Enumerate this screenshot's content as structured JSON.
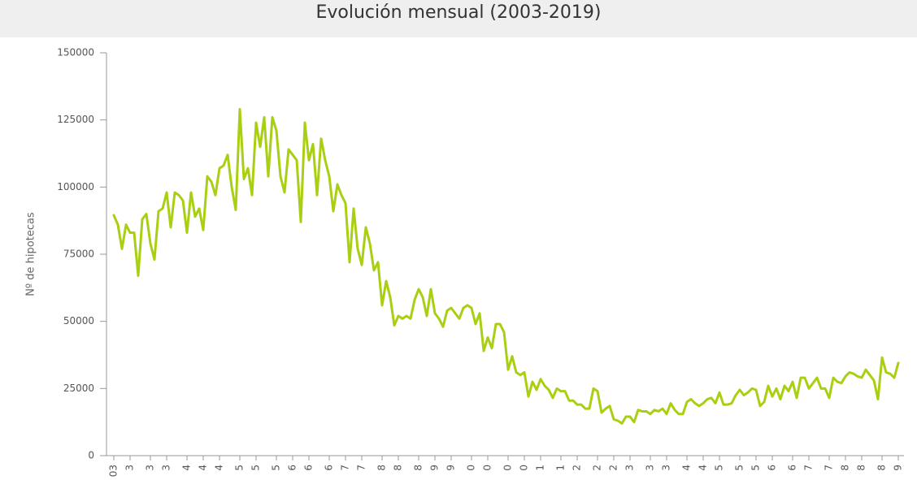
{
  "chart_data": {
    "type": "line",
    "title": "Evolución mensual (2003-2019)",
    "y_label": "Nº de hipotecas",
    "color": "#a9cf12",
    "values": [
      89500,
      86000,
      77000,
      86000,
      83000,
      83000,
      67000,
      88000,
      90000,
      79000,
      73000,
      91000,
      92000,
      98000,
      85000,
      98000,
      97000,
      95000,
      83000,
      98000,
      89000,
      92000,
      84000,
      104000,
      102000,
      97000,
      107000,
      108000,
      112000,
      100000,
      91500,
      129000,
      103000,
      107000,
      97000,
      124000,
      115000,
      126000,
      104000,
      126000,
      121000,
      104000,
      98000,
      114000,
      112000,
      110000,
      87000,
      124000,
      110000,
      116000,
      97000,
      118000,
      110000,
      104000,
      91000,
      101000,
      97000,
      94000,
      72000,
      92000,
      77000,
      71000,
      85000,
      79000,
      69000,
      72000,
      56000,
      65000,
      59000,
      48500,
      52000,
      51000,
      52000,
      51000,
      58000,
      62000,
      59000,
      52000,
      62000,
      53000,
      51000,
      48000,
      54000,
      55000,
      53000,
      51000,
      55000,
      56000,
      55000,
      49000,
      53000,
      39000,
      44000,
      40000,
      49000,
      49000,
      46000,
      32000,
      37000,
      31000,
      30000,
      31000,
      22000,
      27500,
      24500,
      28500,
      26000,
      24500,
      21500,
      25000,
      24000,
      24000,
      20500,
      20500,
      19000,
      19000,
      17500,
      17500,
      25000,
      24000,
      16000,
      17500,
      18500,
      13500,
      13000,
      12000,
      14500,
      14500,
      12500,
      17000,
      16500,
      16500,
      15500,
      17000,
      16500,
      17500,
      15500,
      19500,
      17000,
      15500,
      15500,
      20000,
      21000,
      19500,
      18500,
      19500,
      21000,
      21500,
      19500,
      23500,
      19000,
      19000,
      19500,
      22500,
      24500,
      22500,
      23500,
      25000,
      24500,
      18500,
      20000,
      26000,
      22000,
      25000,
      21000,
      26000,
      24000,
      27500,
      21500,
      29000,
      29000,
      25000,
      27000,
      29000,
      25000,
      25000,
      21500,
      29000,
      27500,
      27000,
      29500,
      31000,
      30500,
      29500,
      29000,
      32000,
      30000,
      28000,
      21000,
      36500,
      31000,
      30500,
      29000,
      34500
    ],
    "xlim": [
      0,
      194
    ],
    "xticks": [
      {
        "value": 0,
        "label": "03"
      },
      {
        "value": 4,
        "label": "3"
      },
      {
        "value": 9,
        "label": "3"
      },
      {
        "value": 13,
        "label": "3"
      },
      {
        "value": 18,
        "label": "4"
      },
      {
        "value": 22,
        "label": "4"
      },
      {
        "value": 26,
        "label": "4"
      },
      {
        "value": 31,
        "label": "5"
      },
      {
        "value": 35,
        "label": "5"
      },
      {
        "value": 40,
        "label": "5"
      },
      {
        "value": 44,
        "label": "6"
      },
      {
        "value": 48,
        "label": "6"
      },
      {
        "value": 53,
        "label": "6"
      },
      {
        "value": 57,
        "label": "7"
      },
      {
        "value": 61,
        "label": "7"
      },
      {
        "value": 66,
        "label": "8"
      },
      {
        "value": 70,
        "label": "8"
      },
      {
        "value": 75,
        "label": "8"
      },
      {
        "value": 79,
        "label": "9"
      },
      {
        "value": 83,
        "label": "9"
      },
      {
        "value": 88,
        "label": "0"
      },
      {
        "value": 92,
        "label": "0"
      },
      {
        "value": 97,
        "label": "0"
      },
      {
        "value": 101,
        "label": "0"
      },
      {
        "value": 105,
        "label": "1"
      },
      {
        "value": 110,
        "label": "1"
      },
      {
        "value": 114,
        "label": "2"
      },
      {
        "value": 119,
        "label": "2"
      },
      {
        "value": 123,
        "label": "2"
      },
      {
        "value": 127,
        "label": "3"
      },
      {
        "value": 132,
        "label": "3"
      },
      {
        "value": 136,
        "label": "3"
      },
      {
        "value": 141,
        "label": "4"
      },
      {
        "value": 145,
        "label": "4"
      },
      {
        "value": 149,
        "label": "5"
      },
      {
        "value": 154,
        "label": "5"
      },
      {
        "value": 158,
        "label": "5"
      },
      {
        "value": 162,
        "label": "6"
      },
      {
        "value": 167,
        "label": "6"
      },
      {
        "value": 171,
        "label": "7"
      },
      {
        "value": 176,
        "label": "7"
      },
      {
        "value": 180,
        "label": "8"
      },
      {
        "value": 184,
        "label": "8"
      },
      {
        "value": 189,
        "label": "8"
      },
      {
        "value": 193,
        "label": "9"
      }
    ],
    "ylim": [
      0,
      150000
    ],
    "yticks": [
      0,
      25000,
      50000,
      75000,
      100000,
      125000,
      150000
    ],
    "grid": false
  }
}
